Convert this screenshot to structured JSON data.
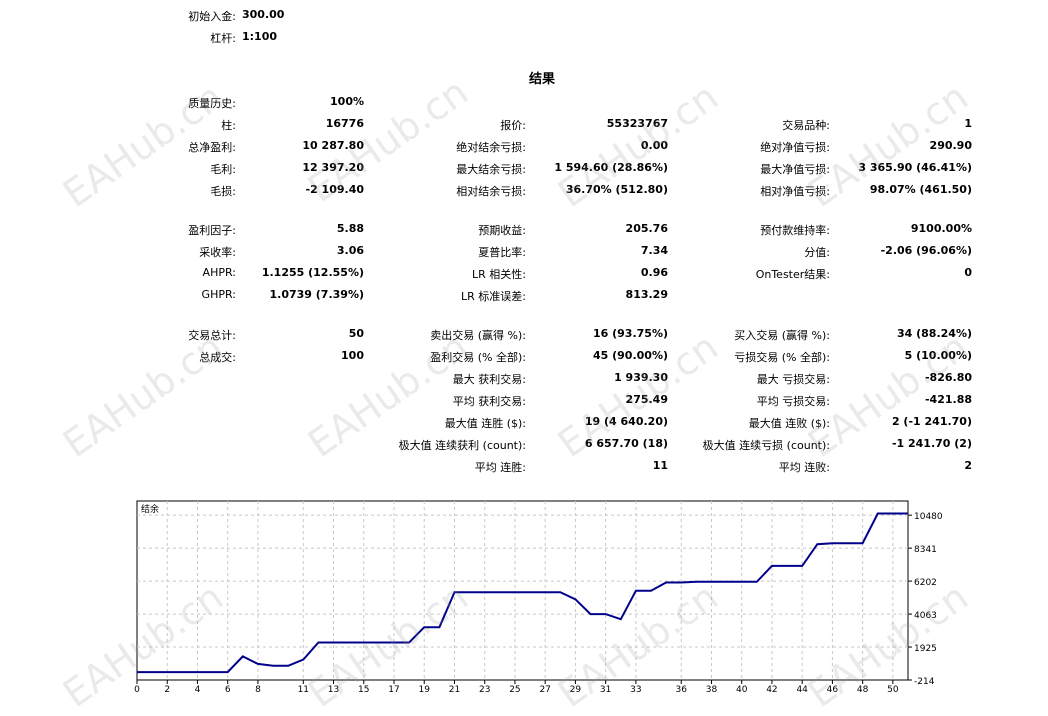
{
  "header": {
    "initial_deposit_label": "初始入金:",
    "initial_deposit_value": "300.00",
    "leverage_label": "杠杆:",
    "leverage_value": "1:100"
  },
  "results_title": "结果",
  "col1": [
    {
      "label": "质量历史:",
      "value": "100%"
    },
    {
      "label": "柱:",
      "value": "16776"
    },
    {
      "label": "总净盈利:",
      "value": "10 287.80"
    },
    {
      "label": "毛利:",
      "value": "12 397.20"
    },
    {
      "label": "毛损:",
      "value": "-2 109.40"
    },
    {
      "label": "盈利因子:",
      "value": "5.88"
    },
    {
      "label": "采收率:",
      "value": "3.06"
    },
    {
      "label": "AHPR:",
      "value": "1.1255 (12.55%)"
    },
    {
      "label": "GHPR:",
      "value": "1.0739 (7.39%)"
    },
    {
      "label": "交易总计:",
      "value": "50"
    },
    {
      "label": "总成交:",
      "value": "100"
    }
  ],
  "col2": [
    {
      "label": "报价:",
      "value": "55323767"
    },
    {
      "label": "绝对结余亏损:",
      "value": "0.00"
    },
    {
      "label": "最大结余亏损:",
      "value": "1 594.60 (28.86%)"
    },
    {
      "label": "相对结余亏损:",
      "value": "36.70% (512.80)"
    },
    {
      "label": "预期收益:",
      "value": "205.76"
    },
    {
      "label": "夏普比率:",
      "value": "7.34"
    },
    {
      "label": "LR 相关性:",
      "value": "0.96"
    },
    {
      "label": "LR 标准误差:",
      "value": "813.29"
    },
    {
      "label": "卖出交易 (赢得 %):",
      "value": "16 (93.75%)"
    },
    {
      "label": "盈利交易 (% 全部):",
      "value": "45 (90.00%)"
    },
    {
      "label": "最大 获利交易:",
      "value": "1 939.30"
    },
    {
      "label": "平均 获利交易:",
      "value": "275.49"
    },
    {
      "label": "最大值 连胜 ($):",
      "value": "19 (4 640.20)"
    },
    {
      "label": "极大值 连续获利 (count):",
      "value": "6 657.70 (18)"
    },
    {
      "label": "平均 连胜:",
      "value": "11"
    }
  ],
  "col3": [
    {
      "label": "交易品种:",
      "value": "1"
    },
    {
      "label": "绝对净值亏损:",
      "value": "290.90"
    },
    {
      "label": "最大净值亏损:",
      "value": "3 365.90 (46.41%)"
    },
    {
      "label": "相对净值亏损:",
      "value": "98.07% (461.50)"
    },
    {
      "label": "预付款维持率:",
      "value": "9100.00%"
    },
    {
      "label": "分值:",
      "value": "-2.06 (96.06%)"
    },
    {
      "label": "OnTester结果:",
      "value": "0"
    },
    {
      "label": "买入交易 (赢得 %):",
      "value": "34 (88.24%)"
    },
    {
      "label": "亏损交易 (% 全部):",
      "value": "5 (10.00%)"
    },
    {
      "label": "最大 亏损交易:",
      "value": "-826.80"
    },
    {
      "label": "平均 亏损交易:",
      "value": "-421.88"
    },
    {
      "label": "最大值 连败 ($):",
      "value": "2 (-1 241.70)"
    },
    {
      "label": "极大值 连续亏损 (count):",
      "value": "-1 241.70 (2)"
    },
    {
      "label": "平均 连败:",
      "value": "2"
    }
  ],
  "watermark": "EAHub.cn",
  "chart_data": {
    "type": "line",
    "title": "结余",
    "line_color": "#00008b",
    "grid": true,
    "xlim": [
      0,
      51
    ],
    "ylim": [
      -214,
      11400
    ],
    "x_ticks": [
      "0",
      "2",
      "4",
      "6",
      "8",
      "11",
      "13",
      "15",
      "17",
      "19",
      "21",
      "23",
      "25",
      "27",
      "29",
      "31",
      "33",
      "36",
      "38",
      "40",
      "42",
      "44",
      "46",
      "48",
      "50"
    ],
    "y_ticks": [
      "10480",
      "8341",
      "6202",
      "4063",
      "1925",
      "-214"
    ],
    "series": [
      {
        "name": "",
        "x": [
          0,
          1,
          2,
          3,
          4,
          5,
          6,
          7,
          8,
          9,
          10,
          11,
          12,
          13,
          14,
          15,
          16,
          17,
          18,
          19,
          20,
          21,
          22,
          23,
          24,
          25,
          26,
          27,
          28,
          29,
          30,
          31,
          32,
          33,
          34,
          35,
          36,
          37,
          38,
          39,
          40,
          41,
          42,
          43,
          44,
          45,
          46,
          47,
          48,
          49,
          50,
          51
        ],
        "y": [
          300,
          300,
          300,
          300,
          300,
          300,
          300,
          1320,
          830,
          710,
          710,
          1110,
          2220,
          2220,
          2220,
          2220,
          2220,
          2220,
          2220,
          3210,
          3210,
          5480,
          5480,
          5480,
          5480,
          5480,
          5480,
          5480,
          5480,
          5020,
          4060,
          4060,
          3730,
          5580,
          5580,
          6110,
          6110,
          6160,
          6160,
          6160,
          6160,
          6160,
          7190,
          7190,
          7190,
          8600,
          8660,
          8660,
          8660,
          10590,
          10590,
          10590
        ]
      }
    ]
  }
}
